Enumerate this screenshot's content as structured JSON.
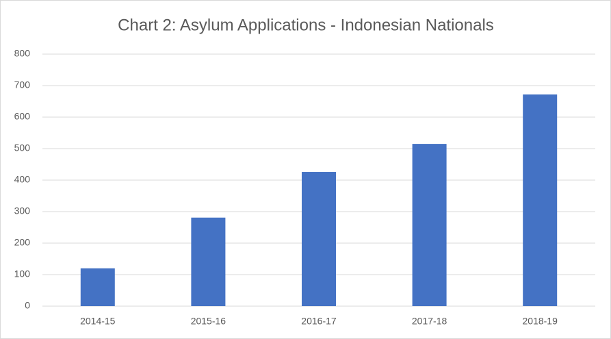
{
  "chart_data": {
    "type": "bar",
    "title": "Chart 2: Asylum Applications - Indonesian Nationals",
    "categories": [
      "2014-15",
      "2015-16",
      "2016-17",
      "2017-18",
      "2018-19"
    ],
    "values": [
      120,
      281,
      426,
      515,
      672
    ],
    "color": "#4472c4",
    "ylim": [
      0,
      800
    ],
    "yticks": [
      0,
      100,
      200,
      300,
      400,
      500,
      600,
      700,
      800
    ],
    "grid": true
  }
}
